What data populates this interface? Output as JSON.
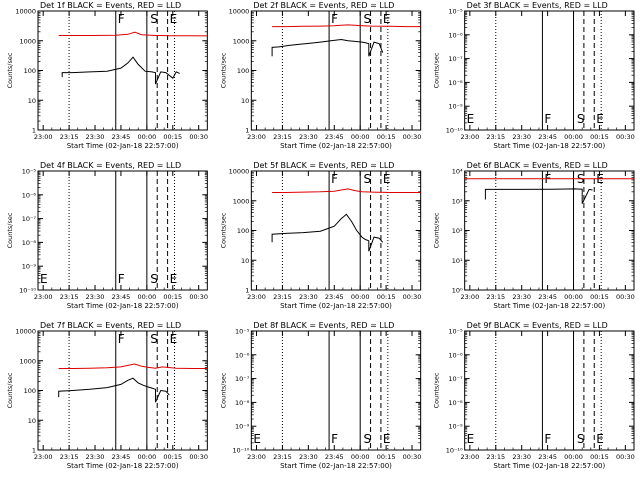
{
  "colors": {
    "events": "#000000",
    "lld": "#dd0000",
    "axes": "#000000",
    "background": "#ffffff"
  },
  "chart_data": [
    {
      "type": "line",
      "title": "Det 1f BLACK = Events, RED = LLD",
      "xlabel": "Start Time (02-Jan-18 22:57:00)",
      "ylabel": "Counts/sec",
      "scale": "log",
      "ylim": [
        1,
        10000
      ],
      "ytick_labels": [
        "1",
        "10",
        "100",
        "1000",
        "10000"
      ],
      "xlim_min": [
        0,
        98
      ],
      "xtick_labels": [
        "23:00",
        "23:15",
        "23:30",
        "23:45",
        "00:00",
        "00:15",
        "00:30"
      ],
      "markers": [
        {
          "label": "",
          "t": 18,
          "style": "dotted"
        },
        {
          "label": "F",
          "t": 45,
          "style": "solid"
        },
        {
          "label": "",
          "t": 63,
          "style": "solid"
        },
        {
          "label": "S",
          "t": 69,
          "style": "dashed"
        },
        {
          "label": "E",
          "t": 75,
          "style": "dashed"
        },
        {
          "label": "",
          "t": 79,
          "style": "dotted"
        }
      ],
      "series": [
        {
          "name": "Events",
          "color": "#000000",
          "x": [
            14,
            14,
            20,
            30,
            40,
            48,
            52,
            55,
            58,
            62,
            66,
            68,
            68,
            71,
            74,
            78,
            80,
            82
          ],
          "y": [
            60,
            85,
            85,
            90,
            95,
            120,
            180,
            280,
            160,
            95,
            90,
            85,
            35,
            90,
            85,
            55,
            90,
            80
          ]
        },
        {
          "name": "LLD",
          "color": "#dd0000",
          "x": [
            12,
            20,
            30,
            45,
            52,
            56,
            60,
            64,
            68,
            72,
            76,
            80,
            88,
            98
          ],
          "y": [
            1500,
            1500,
            1500,
            1520,
            1650,
            1950,
            1600,
            1550,
            1500,
            1500,
            1480,
            1480,
            1470,
            1450
          ]
        }
      ]
    },
    {
      "type": "line",
      "title": "Det 2f BLACK = Events, RED = LLD",
      "xlabel": "Start Time (02-Jan-18 22:57:00)",
      "ylabel": "Counts/sec",
      "scale": "log",
      "ylim": [
        1,
        10000
      ],
      "ytick_labels": [
        "1",
        "10",
        "100",
        "1000",
        "10000"
      ],
      "xlim_min": [
        0,
        98
      ],
      "xtick_labels": [
        "23:00",
        "23:15",
        "23:30",
        "23:45",
        "00:00",
        "00:15",
        "00:30"
      ],
      "markers": [
        {
          "label": "",
          "t": 18,
          "style": "dotted"
        },
        {
          "label": "F",
          "t": 45,
          "style": "solid"
        },
        {
          "label": "",
          "t": 63,
          "style": "solid"
        },
        {
          "label": "S",
          "t": 69,
          "style": "dashed"
        },
        {
          "label": "E",
          "t": 75,
          "style": "dashed"
        },
        {
          "label": "",
          "t": 79,
          "style": "dotted"
        }
      ],
      "series": [
        {
          "name": "Events",
          "color": "#000000",
          "x": [
            12,
            12,
            16,
            22,
            28,
            34,
            40,
            46,
            52,
            56,
            60,
            64,
            66,
            68,
            68,
            71,
            74,
            76
          ],
          "y": [
            300,
            600,
            620,
            700,
            760,
            820,
            900,
            1000,
            1100,
            1000,
            950,
            900,
            850,
            800,
            300,
            900,
            800,
            400
          ]
        },
        {
          "name": "LLD",
          "color": "#dd0000",
          "x": [
            12,
            20,
            30,
            40,
            48,
            52,
            56,
            60,
            64,
            70,
            80,
            90,
            98
          ],
          "y": [
            3000,
            3000,
            3050,
            3100,
            3200,
            3300,
            3400,
            3300,
            3200,
            3100,
            3050,
            3000,
            3000
          ]
        }
      ]
    },
    {
      "type": "line",
      "title": "Det 3f BLACK = Events, RED = LLD",
      "xlabel": "Start Time (02-Jan-18 22:57:00)",
      "ylabel": "Counts/sec",
      "scale": "log",
      "ylim": [
        1e-10,
        1e-05
      ],
      "ytick_labels": [
        "10⁻¹⁰",
        "10⁻⁹",
        "10⁻⁸",
        "10⁻⁷",
        "10⁻⁶",
        "10⁻⁵"
      ],
      "xlim_min": [
        0,
        98
      ],
      "xtick_labels": [
        "23:00",
        "23:15",
        "23:30",
        "23:45",
        "00:00",
        "00:15",
        "00:30"
      ],
      "markers": [
        {
          "label": "E",
          "t": 0,
          "style": "none"
        },
        {
          "label": "",
          "t": 18,
          "style": "dotted"
        },
        {
          "label": "F",
          "t": 45,
          "style": "solid"
        },
        {
          "label": "",
          "t": 63,
          "style": "solid"
        },
        {
          "label": "S",
          "t": 69,
          "style": "dashed"
        },
        {
          "label": "E",
          "t": 75,
          "style": "dashed"
        },
        {
          "label": "",
          "t": 79,
          "style": "dotted"
        }
      ],
      "series": []
    },
    {
      "type": "line",
      "title": "Det 4f BLACK = Events, RED = LLD",
      "xlabel": "Start Time (02-Jan-18 22:57:00)",
      "ylabel": "Counts/sec",
      "scale": "log",
      "ylim": [
        1e-10,
        1e-05
      ],
      "ytick_labels": [
        "10⁻¹⁰",
        "10⁻⁹",
        "10⁻⁸",
        "10⁻⁷",
        "10⁻⁶",
        "10⁻⁵"
      ],
      "xlim_min": [
        0,
        98
      ],
      "xtick_labels": [
        "23:00",
        "23:15",
        "23:30",
        "23:45",
        "00:00",
        "00:15",
        "00:30"
      ],
      "markers": [
        {
          "label": "E",
          "t": 0,
          "style": "none"
        },
        {
          "label": "",
          "t": 18,
          "style": "dotted"
        },
        {
          "label": "F",
          "t": 45,
          "style": "solid"
        },
        {
          "label": "",
          "t": 63,
          "style": "solid"
        },
        {
          "label": "S",
          "t": 69,
          "style": "dashed"
        },
        {
          "label": "E",
          "t": 75,
          "style": "dashed"
        },
        {
          "label": "",
          "t": 79,
          "style": "dotted"
        }
      ],
      "series": []
    },
    {
      "type": "line",
      "title": "Det 5f BLACK = Events, RED = LLD",
      "xlabel": "Start Time (02-Jan-18 22:57:00)",
      "ylabel": "Counts/sec",
      "scale": "log",
      "ylim": [
        1,
        10000
      ],
      "ytick_labels": [
        "1",
        "10",
        "100",
        "1000",
        "10000"
      ],
      "xlim_min": [
        0,
        98
      ],
      "xtick_labels": [
        "23:00",
        "23:15",
        "23:30",
        "23:45",
        "00:00",
        "00:15",
        "00:30"
      ],
      "markers": [
        {
          "label": "",
          "t": 18,
          "style": "dotted"
        },
        {
          "label": "F",
          "t": 45,
          "style": "solid"
        },
        {
          "label": "",
          "t": 63,
          "style": "solid"
        },
        {
          "label": "S",
          "t": 69,
          "style": "dashed"
        },
        {
          "label": "E",
          "t": 75,
          "style": "dashed"
        },
        {
          "label": "",
          "t": 79,
          "style": "dotted"
        }
      ],
      "series": [
        {
          "name": "Events",
          "color": "#000000",
          "x": [
            12,
            12,
            20,
            30,
            40,
            48,
            52,
            55,
            58,
            61,
            64,
            66,
            68,
            68,
            71,
            74,
            76
          ],
          "y": [
            40,
            75,
            80,
            85,
            95,
            140,
            250,
            350,
            200,
            100,
            60,
            50,
            45,
            20,
            60,
            55,
            40
          ]
        },
        {
          "name": "LLD",
          "color": "#dd0000",
          "x": [
            12,
            20,
            30,
            40,
            48,
            52,
            56,
            60,
            64,
            70,
            80,
            90,
            98
          ],
          "y": [
            1900,
            1900,
            1950,
            2000,
            2100,
            2300,
            2500,
            2200,
            2000,
            1950,
            1900,
            1900,
            1900
          ]
        }
      ]
    },
    {
      "type": "line",
      "title": "Det 6f BLACK = Events, RED = LLD",
      "xlabel": "Start Time (02-Jan-18 22:57:00)",
      "ylabel": "Counts/sec",
      "scale": "log",
      "ylim": [
        1,
        10000
      ],
      "ytick_labels": [
        "10⁰",
        "10¹",
        "10²",
        "10³",
        "10⁴"
      ],
      "xlim_min": [
        0,
        98
      ],
      "xtick_labels": [
        "23:00",
        "23:15",
        "23:30",
        "23:45",
        "00:00",
        "00:15",
        "00:30"
      ],
      "markers": [
        {
          "label": "",
          "t": 18,
          "style": "dotted"
        },
        {
          "label": "F",
          "t": 45,
          "style": "solid"
        },
        {
          "label": "",
          "t": 63,
          "style": "solid"
        },
        {
          "label": "S",
          "t": 69,
          "style": "dashed"
        },
        {
          "label": "E",
          "t": 75,
          "style": "dashed"
        },
        {
          "label": "",
          "t": 79,
          "style": "dotted"
        }
      ],
      "series": [
        {
          "name": "Events",
          "color": "#000000",
          "x": [
            12,
            12,
            30,
            50,
            64,
            68,
            68,
            72,
            74
          ],
          "y": [
            1100,
            2400,
            2400,
            2450,
            2500,
            2450,
            800,
            2400,
            2300
          ]
        },
        {
          "name": "LLD",
          "color": "#dd0000",
          "x": [
            0,
            20,
            40,
            60,
            80,
            98
          ],
          "y": [
            5500,
            5500,
            5500,
            5500,
            5500,
            5500
          ]
        }
      ]
    },
    {
      "type": "line",
      "title": "Det 7f BLACK = Events, RED = LLD",
      "xlabel": "Start Time (02-Jan-18 22:57:00)",
      "ylabel": "Counts/sec",
      "scale": "log",
      "ylim": [
        1,
        10000
      ],
      "ytick_labels": [
        "1",
        "10",
        "100",
        "1000",
        "10000"
      ],
      "xlim_min": [
        0,
        98
      ],
      "xtick_labels": [
        "23:00",
        "23:15",
        "23:30",
        "23:45",
        "00:00",
        "00:15",
        "00:30"
      ],
      "markers": [
        {
          "label": "",
          "t": 18,
          "style": "dotted"
        },
        {
          "label": "F",
          "t": 45,
          "style": "solid"
        },
        {
          "label": "",
          "t": 63,
          "style": "solid"
        },
        {
          "label": "S",
          "t": 69,
          "style": "dashed"
        },
        {
          "label": "E",
          "t": 75,
          "style": "dashed"
        },
        {
          "label": "",
          "t": 79,
          "style": "dotted"
        }
      ],
      "series": [
        {
          "name": "Events",
          "color": "#000000",
          "x": [
            12,
            12,
            20,
            30,
            40,
            48,
            52,
            55,
            58,
            61,
            64,
            66,
            68,
            68,
            71,
            74,
            76
          ],
          "y": [
            60,
            95,
            100,
            110,
            125,
            160,
            220,
            260,
            180,
            150,
            130,
            120,
            110,
            40,
            100,
            95,
            70
          ]
        },
        {
          "name": "LLD",
          "color": "#dd0000",
          "x": [
            12,
            20,
            30,
            40,
            48,
            52,
            56,
            60,
            64,
            68,
            72,
            80,
            90,
            98
          ],
          "y": [
            550,
            550,
            560,
            580,
            620,
            700,
            780,
            650,
            600,
            560,
            620,
            560,
            550,
            550
          ]
        }
      ]
    },
    {
      "type": "line",
      "title": "Det 8f BLACK = Events, RED = LLD",
      "xlabel": "Start Time (02-Jan-18 22:57:00)",
      "ylabel": "Counts/sec",
      "scale": "log",
      "ylim": [
        1e-10,
        1e-05
      ],
      "ytick_labels": [
        "10⁻¹⁰",
        "10⁻⁹",
        "10⁻⁸",
        "10⁻⁷",
        "10⁻⁶",
        "10⁻⁵"
      ],
      "xlim_min": [
        0,
        98
      ],
      "xtick_labels": [
        "23:00",
        "23:15",
        "23:30",
        "23:45",
        "00:00",
        "00:15",
        "00:30"
      ],
      "markers": [
        {
          "label": "E",
          "t": 0,
          "style": "none"
        },
        {
          "label": "",
          "t": 18,
          "style": "dotted"
        },
        {
          "label": "F",
          "t": 45,
          "style": "solid"
        },
        {
          "label": "",
          "t": 63,
          "style": "solid"
        },
        {
          "label": "S",
          "t": 69,
          "style": "dashed"
        },
        {
          "label": "E",
          "t": 75,
          "style": "dashed"
        },
        {
          "label": "",
          "t": 79,
          "style": "dotted"
        }
      ],
      "series": []
    },
    {
      "type": "line",
      "title": "Det 9f BLACK = Events, RED = LLD",
      "xlabel": "Start Time (02-Jan-18 22:57:00)",
      "ylabel": "Counts/sec",
      "scale": "log",
      "ylim": [
        1e-10,
        1e-05
      ],
      "ytick_labels": [
        "10⁻¹⁰",
        "10⁻⁹",
        "10⁻⁸",
        "10⁻⁷",
        "10⁻⁶",
        "10⁻⁵"
      ],
      "xlim_min": [
        0,
        98
      ],
      "xtick_labels": [
        "23:00",
        "23:15",
        "23:30",
        "23:45",
        "00:00",
        "00:15",
        "00:30"
      ],
      "markers": [
        {
          "label": "E",
          "t": 0,
          "style": "none"
        },
        {
          "label": "",
          "t": 18,
          "style": "dotted"
        },
        {
          "label": "F",
          "t": 45,
          "style": "solid"
        },
        {
          "label": "",
          "t": 63,
          "style": "solid"
        },
        {
          "label": "S",
          "t": 69,
          "style": "dashed"
        },
        {
          "label": "E",
          "t": 75,
          "style": "dashed"
        },
        {
          "label": "",
          "t": 79,
          "style": "dotted"
        }
      ],
      "series": []
    }
  ]
}
